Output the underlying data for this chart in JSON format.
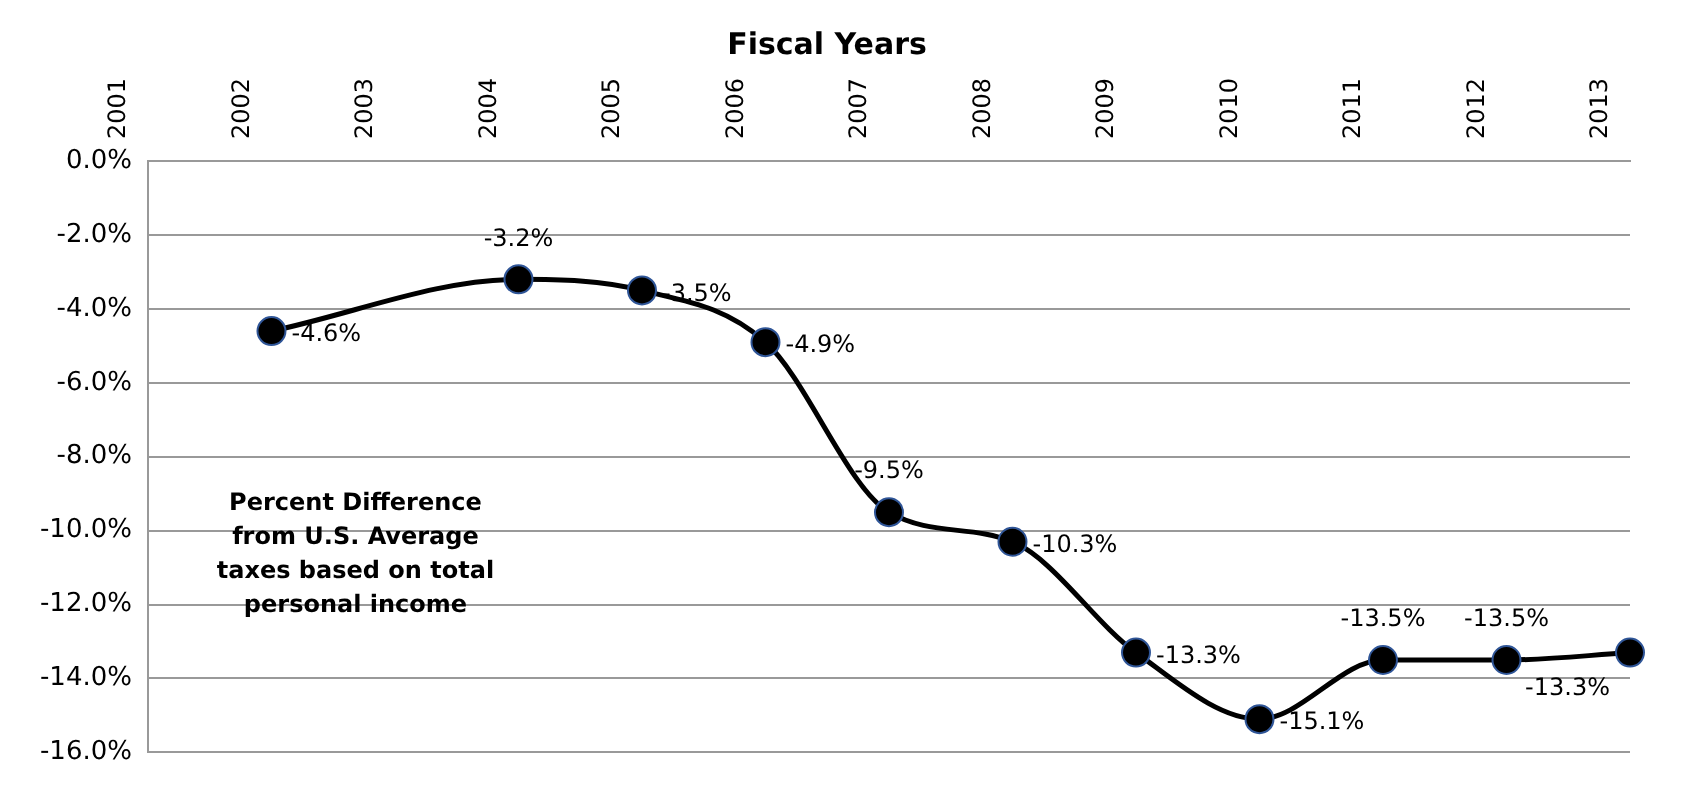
{
  "chart_data": {
    "type": "line",
    "title": "Fiscal Years",
    "categories": [
      "2001",
      "2002",
      "2003",
      "2004",
      "2005",
      "2006",
      "2007",
      "2008",
      "2009",
      "2010",
      "2011",
      "2012",
      "2013"
    ],
    "series": [
      {
        "color": "#000000",
        "values": [
          null,
          -4.6,
          null,
          -3.2,
          -3.5,
          -4.9,
          -9.5,
          -10.3,
          -13.3,
          -15.1,
          -13.5,
          -13.5,
          -13.3
        ],
        "value_labels": [
          null,
          "-4.6%",
          null,
          "-3.2%",
          "-3.5%",
          "-4.9%",
          "-9.5%",
          "-10.3%",
          "-13.3%",
          "-15.1%",
          "-13.5%",
          "-13.5%",
          "-13.3%"
        ]
      }
    ],
    "ylim": [
      -16,
      0
    ],
    "yticks": [
      {
        "value": -16,
        "label": "-16.0%"
      },
      {
        "value": -14,
        "label": "-14.0%"
      },
      {
        "value": -12,
        "label": "-12.0%"
      },
      {
        "value": -10,
        "label": "-10.0%"
      },
      {
        "value": -8,
        "label": "-8.0%"
      },
      {
        "value": -6,
        "label": "-6.0%"
      },
      {
        "value": -4,
        "label": "-4.0%"
      },
      {
        "value": -2,
        "label": "-2.0%"
      },
      {
        "value": 0,
        "label": "0.0%"
      }
    ],
    "grid": "y",
    "marker": "circle",
    "line_style": "solid",
    "annotations": [
      "Percent Difference\nfrom U.S. Average\ntaxes based on total\npersonal income"
    ]
  }
}
